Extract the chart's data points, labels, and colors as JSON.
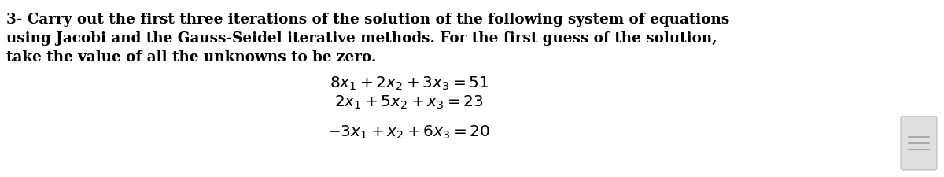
{
  "bg_color": "#ffffff",
  "text_color": "#000000",
  "paragraph_lines": [
    "3- Carry out the first three iterations of the solution of the following system of equations",
    "using Jacobi and the Gauss-Seidel iterative methods. For the first guess of the solution,",
    "take the value of all the unknowns to be zero."
  ],
  "eq1": "$8x_1 + 2x_2 + 3x_3 = 51$",
  "eq2": "$2x_1 + 5x_2 + x_3 = 23$",
  "eq3": "$-3x_1 + x_2 + 6x_3 = 20$",
  "para_fontsize": 13.2,
  "eq_fontsize": 14.5,
  "scrollbar_lines_color": "#aaaaaa",
  "scrollbar_box_color": "#e0e0e0",
  "scrollbar_border_color": "#bbbbbb"
}
